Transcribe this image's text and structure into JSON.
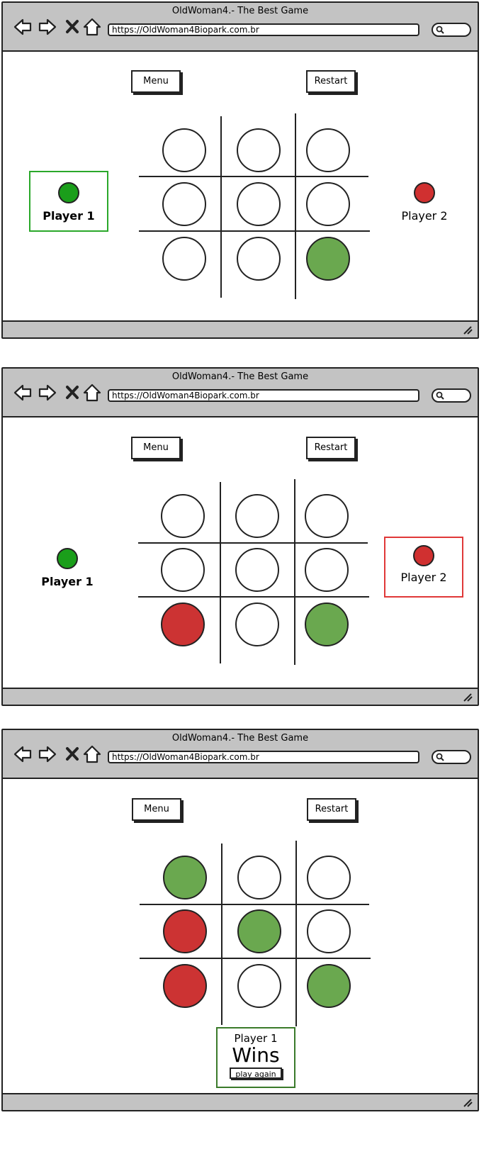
{
  "browser": {
    "title": "OldWoman4.- The Best Game",
    "url": "https://OldWoman4Biopark.com.br"
  },
  "toolbar": {
    "menu_label": "Menu",
    "restart_label": "Restart"
  },
  "players": {
    "p1": "Player 1",
    "p2": "Player 2"
  },
  "colors": {
    "player1": "#1a9e1a",
    "player2": "#d03030",
    "cell_green": "#6aa84f",
    "cell_red": "#cc3333",
    "active_p1_border": "#2aa82a",
    "active_p2_border": "#e03838",
    "chrome": "#c3c3c3"
  },
  "screens": [
    {
      "active_player": "p1",
      "board": [
        "empty",
        "empty",
        "empty",
        "empty",
        "empty",
        "empty",
        "empty",
        "empty",
        "green"
      ]
    },
    {
      "active_player": "p2",
      "board": [
        "empty",
        "empty",
        "empty",
        "empty",
        "empty",
        "empty",
        "red",
        "empty",
        "green"
      ]
    },
    {
      "active_player": "none",
      "board": [
        "green",
        "empty",
        "empty",
        "red",
        "green",
        "empty",
        "red",
        "empty",
        "green"
      ],
      "result": {
        "line1": "Player 1",
        "line2": "Wins",
        "button": "play again"
      }
    }
  ]
}
